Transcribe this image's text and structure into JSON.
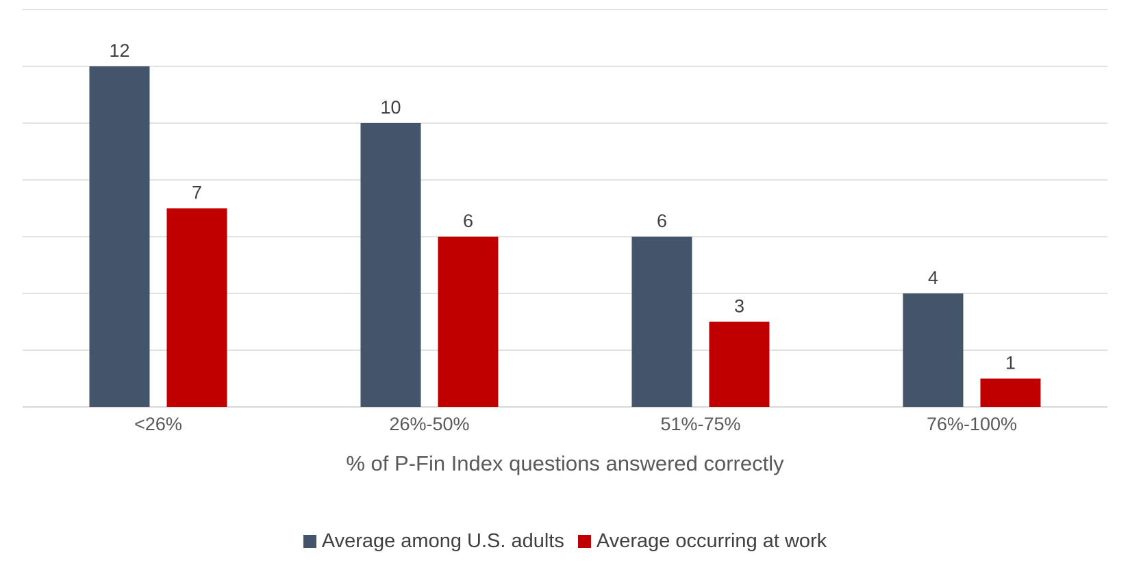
{
  "chart_data": {
    "type": "bar",
    "title": "",
    "xlabel": "% of P-Fin Index questions answered correctly",
    "ylabel": "",
    "categories": [
      "<26%",
      "26%-50%",
      "51%-75%",
      "76%-100%"
    ],
    "series": [
      {
        "name": "Average among U.S. adults",
        "values": [
          12,
          10,
          6,
          4
        ],
        "color": "#44546a"
      },
      {
        "name": "Average occurring at work",
        "values": [
          7,
          6,
          3,
          1
        ],
        "color": "#c00000"
      }
    ],
    "ylim": [
      0,
      14
    ],
    "gridlines": true,
    "data_labels": true,
    "legend_position": "bottom"
  }
}
